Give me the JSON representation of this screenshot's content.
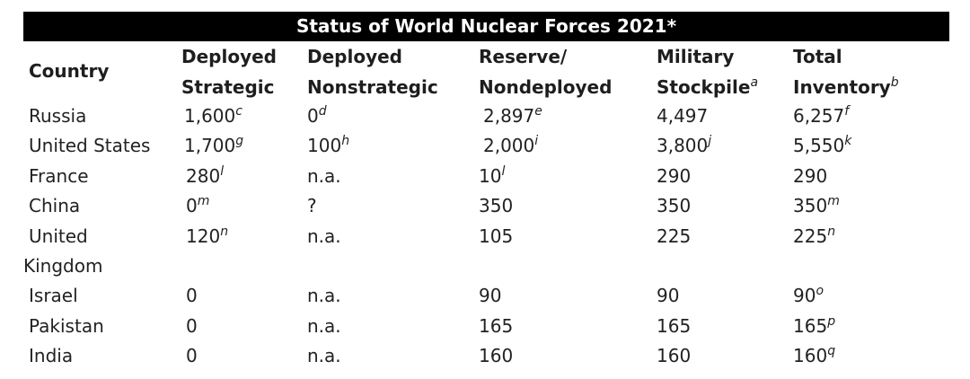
{
  "table": {
    "title": "Status of World Nuclear Forces 2021*",
    "headers": {
      "country": "Country",
      "deployed_strategic_1": "Deployed",
      "deployed_strategic_2": "Strategic",
      "deployed_nonstrategic_1": "Deployed",
      "deployed_nonstrategic_2": "Nonstrategic",
      "reserve_1": "Reserve/",
      "reserve_2": "Nondeployed",
      "military_1": "Military",
      "military_2": "Stockpile",
      "military_note": "a",
      "total_1": "Total",
      "total_2": "Inventory",
      "total_note": "b"
    },
    "rows": [
      {
        "country": "Russia",
        "ds": "1,600",
        "ds_note": "c",
        "dn": "0",
        "dn_note": "d",
        "rn": "2,897",
        "rn_note": "e",
        "ms": "4,497",
        "ms_note": "",
        "ti": "6,257",
        "ti_note": "f"
      },
      {
        "country": "United States",
        "ds": "1,700",
        "ds_note": "g",
        "dn": "100",
        "dn_note": "h",
        "rn": "2,000",
        "rn_note": "i",
        "ms": "3,800",
        "ms_note": "j",
        "ti": "5,550",
        "ti_note": "k"
      },
      {
        "country": "France",
        "ds": "280",
        "ds_note": "l",
        "dn": "n.a.",
        "dn_note": "",
        "rn": "10",
        "rn_note": "l",
        "ms": "290",
        "ms_note": "",
        "ti": "290",
        "ti_note": ""
      },
      {
        "country": "China",
        "ds": "0",
        "ds_note": "m",
        "dn": "?",
        "dn_note": "",
        "rn": "350",
        "rn_note": "",
        "ms": "350",
        "ms_note": "",
        "ti": "350",
        "ti_note": "m"
      },
      {
        "country": "United",
        "country_line2": "Kingdom",
        "ds": "120",
        "ds_note": "n",
        "dn": "n.a.",
        "dn_note": "",
        "rn": "105",
        "rn_note": "",
        "ms": "225",
        "ms_note": "",
        "ti": "225",
        "ti_note": "n"
      },
      {
        "country": "Israel",
        "ds": "0",
        "ds_note": "",
        "dn": "n.a.",
        "dn_note": "",
        "rn": "90",
        "rn_note": "",
        "ms": "90",
        "ms_note": "",
        "ti": "90",
        "ti_note": "o"
      },
      {
        "country": "Pakistan",
        "ds": "0",
        "ds_note": "",
        "dn": "n.a.",
        "dn_note": "",
        "rn": "165",
        "rn_note": "",
        "ms": "165",
        "ms_note": "",
        "ti": "165",
        "ti_note": "p"
      },
      {
        "country": "India",
        "ds": "0",
        "ds_note": "",
        "dn": "n.a.",
        "dn_note": "",
        "rn": "160",
        "rn_note": "",
        "ms": "160",
        "ms_note": "",
        "ti": "160",
        "ti_note": "q"
      }
    ]
  }
}
